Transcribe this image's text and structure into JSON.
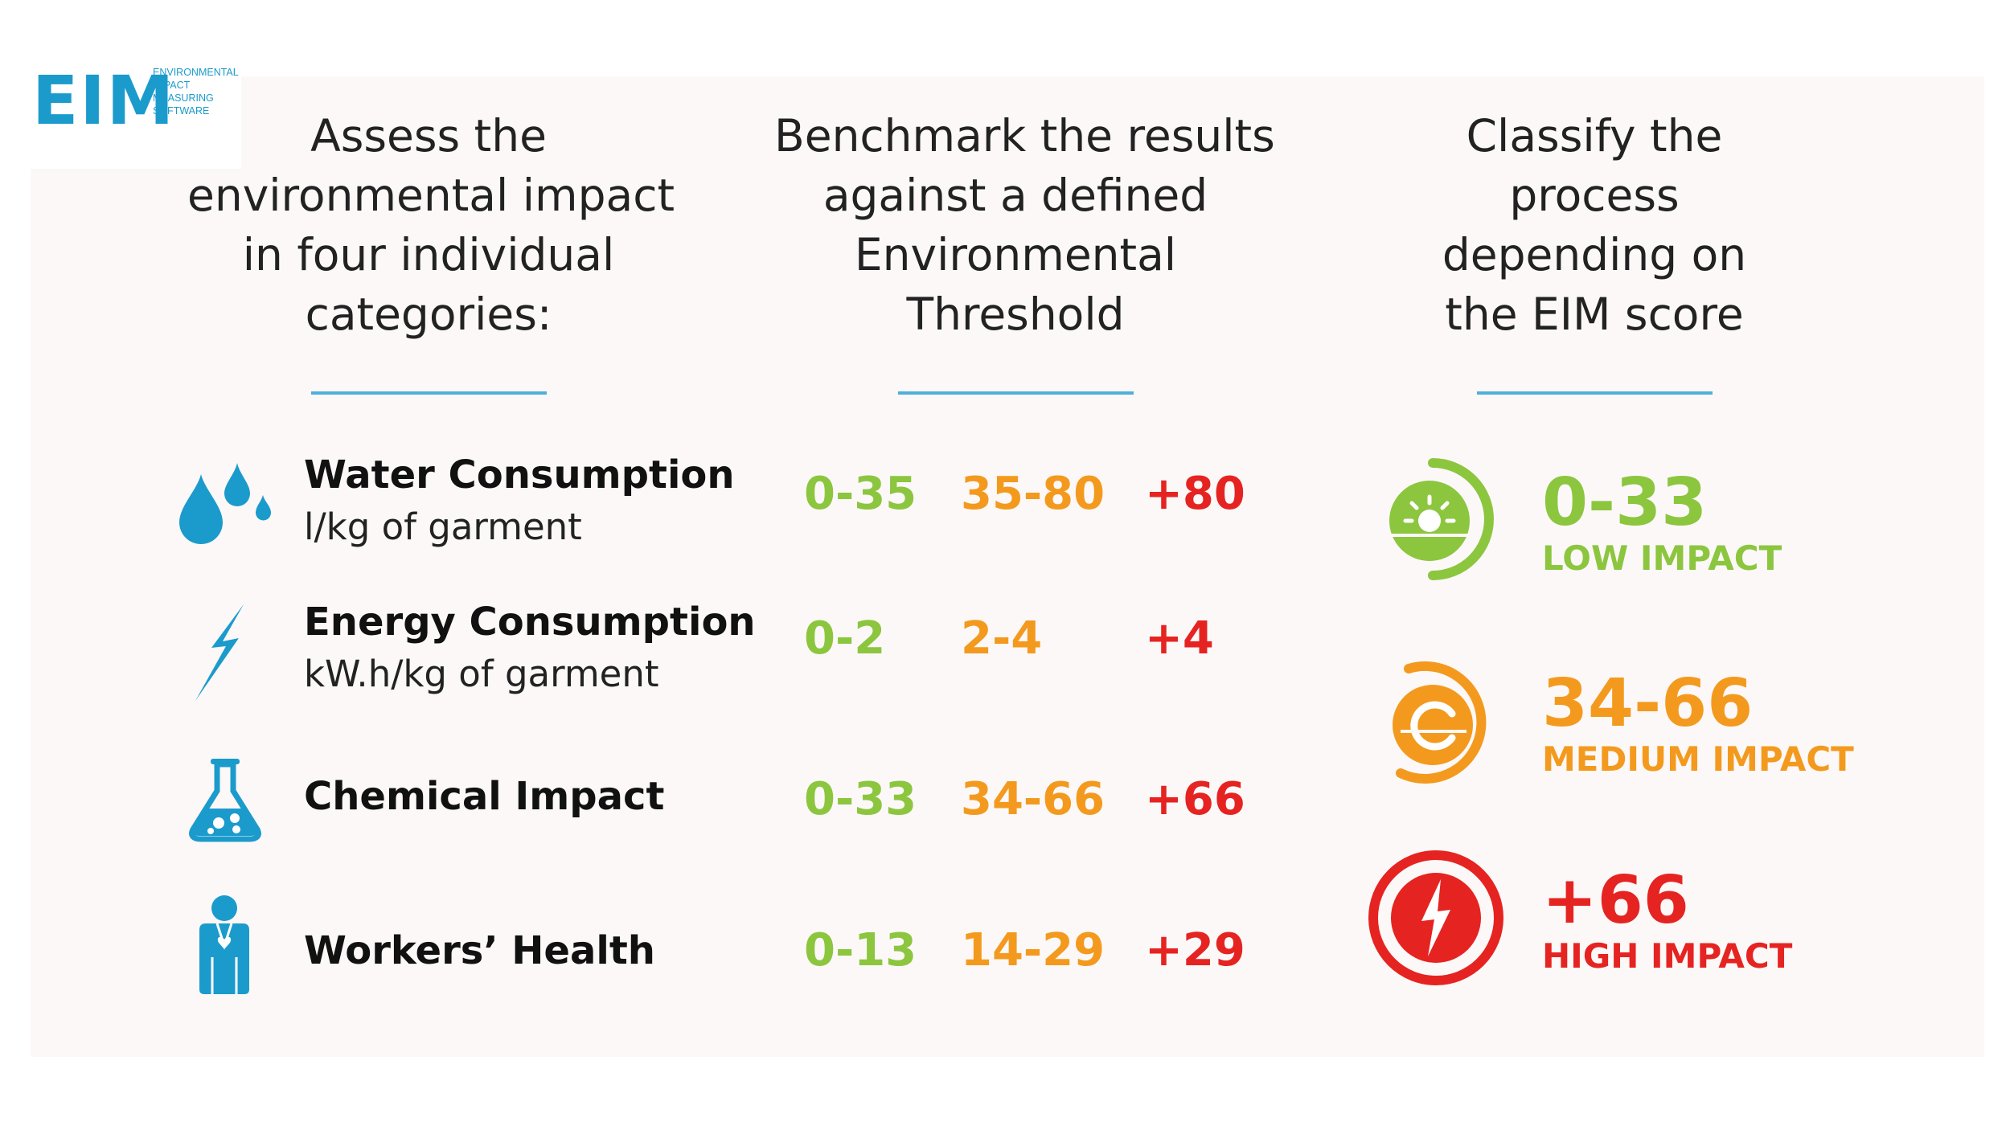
{
  "logo": {
    "mark": "EIM",
    "lines": [
      "ENVIRONMENTAL",
      "IMPACT",
      "MEASURING",
      "SOFTWARE"
    ]
  },
  "colors": {
    "low": "#8cc63f",
    "medium": "#f39a1e",
    "high": "#e52421",
    "accent": "#1b9bcc"
  },
  "columns": [
    {
      "lines": [
        "Assess the",
        "environmental impact",
        "in four individual",
        "categories:"
      ]
    },
    {
      "lines": [
        "Benchmark the results",
        "against a defined",
        "Environmental",
        "Threshold"
      ]
    },
    {
      "lines": [
        "Classify the",
        "process",
        "depending on",
        "the EIM score"
      ]
    }
  ],
  "categories": [
    {
      "icon": "water-drops-icon",
      "name": "Water Consumption",
      "unit": "l/kg of garment",
      "low": "0-35",
      "medium": "35-80",
      "high": "+80"
    },
    {
      "icon": "lightning-icon",
      "name": "Energy Consumption",
      "unit": "kW.h/kg of garment",
      "low": "0-2",
      "medium": "2-4",
      "high": "+4"
    },
    {
      "icon": "flask-icon",
      "name": "Chemical Impact",
      "unit": "",
      "low": "0-33",
      "medium": "34-66",
      "high": "+66"
    },
    {
      "icon": "worker-icon",
      "name": "Workers’ Health",
      "unit": "",
      "low": "0-13",
      "medium": "14-29",
      "high": "+29"
    }
  ],
  "classes": [
    {
      "icon": "low-impact-gauge-icon",
      "score": "0-33",
      "label": "LOW IMPACT"
    },
    {
      "icon": "medium-impact-gauge-icon",
      "score": "34-66",
      "label": "MEDIUM IMPACT"
    },
    {
      "icon": "high-impact-gauge-icon",
      "score": "+66",
      "label": "HIGH IMPACT"
    }
  ]
}
